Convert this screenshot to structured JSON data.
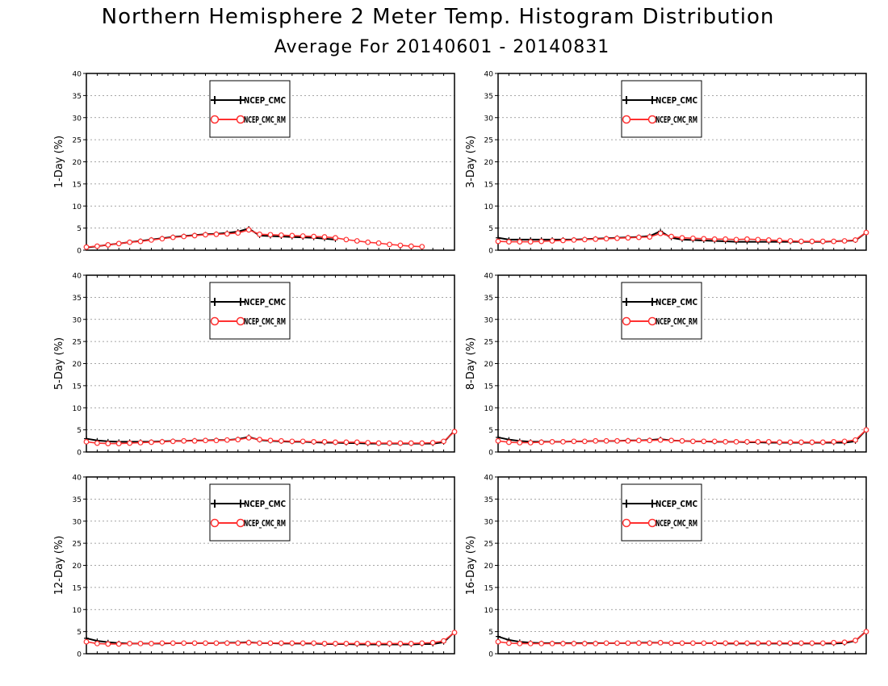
{
  "page": {
    "title": "Northern Hemisphere 2 Meter Temp. Histogram Distribution",
    "subtitle": "Average For 20140601 - 20140831"
  },
  "colors": {
    "ncep": "#000000",
    "ncep_rm": "#ff3030",
    "grid": "#888888"
  },
  "chart_data": [
    {
      "type": "line",
      "ylabel": "1-Day (%)",
      "ylim": [
        0,
        40
      ],
      "yticks": [
        0,
        5,
        10,
        15,
        20,
        25,
        30,
        35,
        40
      ],
      "grid": true,
      "legend": "upper-center",
      "x": [
        1,
        2,
        3,
        4,
        5,
        6,
        7,
        8,
        9,
        10,
        11,
        12,
        13,
        14,
        15,
        16,
        17,
        18,
        19,
        20,
        21,
        22,
        23,
        24,
        25,
        26,
        27,
        28,
        29,
        30,
        31,
        32,
        33,
        34,
        35
      ],
      "series": [
        {
          "name": "NCEP_CMC",
          "marker": "plus",
          "values": [
            0.6,
            0.9,
            1.2,
            1.5,
            1.8,
            2.1,
            2.4,
            2.7,
            3.0,
            3.2,
            3.4,
            3.6,
            3.7,
            3.9,
            4.2,
            4.9,
            3.3,
            3.2,
            3.1,
            3.0,
            2.9,
            2.8,
            2.6,
            2.4,
            null,
            null,
            null,
            null,
            null,
            null,
            null,
            null,
            null,
            null,
            null
          ]
        },
        {
          "name": "NCEP_CMC_RM",
          "marker": "circle",
          "values": [
            0.7,
            0.9,
            1.2,
            1.5,
            1.8,
            2.0,
            2.3,
            2.6,
            2.9,
            3.1,
            3.3,
            3.5,
            3.6,
            3.7,
            3.9,
            4.6,
            3.6,
            3.5,
            3.4,
            3.3,
            3.2,
            3.1,
            3.0,
            2.8,
            2.4,
            2.1,
            1.8,
            1.6,
            1.3,
            1.1,
            0.9,
            0.8,
            null,
            null,
            null
          ]
        }
      ]
    },
    {
      "type": "line",
      "ylabel": "3-Day (%)",
      "ylim": [
        0,
        40
      ],
      "yticks": [
        0,
        5,
        10,
        15,
        20,
        25,
        30,
        35,
        40
      ],
      "grid": true,
      "legend": "upper-center",
      "x": [
        1,
        2,
        3,
        4,
        5,
        6,
        7,
        8,
        9,
        10,
        11,
        12,
        13,
        14,
        15,
        16,
        17,
        18,
        19,
        20,
        21,
        22,
        23,
        24,
        25,
        26,
        27,
        28,
        29,
        30,
        31,
        32,
        33,
        34,
        35
      ],
      "series": [
        {
          "name": "NCEP_CMC",
          "marker": "plus",
          "values": [
            2.8,
            2.4,
            2.4,
            2.4,
            2.4,
            2.4,
            2.4,
            2.4,
            2.5,
            2.6,
            2.7,
            2.8,
            2.9,
            3.0,
            3.2,
            4.3,
            2.8,
            2.4,
            2.3,
            2.2,
            2.1,
            2.0,
            1.9,
            1.9,
            1.9,
            1.9,
            1.9,
            1.9,
            1.9,
            1.9,
            1.9,
            2.0,
            2.1,
            2.2,
            4.0
          ]
        },
        {
          "name": "NCEP_CMC_RM",
          "marker": "circle",
          "values": [
            2.0,
            1.9,
            1.9,
            1.9,
            2.0,
            2.1,
            2.2,
            2.3,
            2.4,
            2.5,
            2.6,
            2.7,
            2.8,
            2.9,
            3.0,
            3.8,
            3.1,
            2.8,
            2.7,
            2.6,
            2.5,
            2.5,
            2.4,
            2.5,
            2.4,
            2.3,
            2.2,
            2.1,
            2.0,
            2.0,
            2.0,
            2.0,
            2.1,
            2.3,
            4.0
          ]
        }
      ]
    },
    {
      "type": "line",
      "ylabel": "5-Day (%)",
      "ylim": [
        0,
        40
      ],
      "yticks": [
        0,
        5,
        10,
        15,
        20,
        25,
        30,
        35,
        40
      ],
      "grid": true,
      "legend": "upper-center",
      "x": [
        1,
        2,
        3,
        4,
        5,
        6,
        7,
        8,
        9,
        10,
        11,
        12,
        13,
        14,
        15,
        16,
        17,
        18,
        19,
        20,
        21,
        22,
        23,
        24,
        25,
        26,
        27,
        28,
        29,
        30,
        31,
        32,
        33,
        34,
        35
      ],
      "series": [
        {
          "name": "NCEP_CMC",
          "marker": "plus",
          "values": [
            3.0,
            2.6,
            2.4,
            2.3,
            2.3,
            2.3,
            2.3,
            2.4,
            2.5,
            2.5,
            2.6,
            2.6,
            2.7,
            2.7,
            2.9,
            3.4,
            2.7,
            2.5,
            2.4,
            2.3,
            2.3,
            2.2,
            2.1,
            2.1,
            2.0,
            2.0,
            1.9,
            1.9,
            1.9,
            1.9,
            1.9,
            1.9,
            1.9,
            2.2,
            4.8
          ]
        },
        {
          "name": "NCEP_CMC_RM",
          "marker": "circle",
          "values": [
            2.3,
            2.0,
            1.9,
            1.9,
            2.0,
            2.1,
            2.2,
            2.3,
            2.4,
            2.5,
            2.5,
            2.6,
            2.6,
            2.7,
            2.8,
            3.2,
            2.8,
            2.6,
            2.5,
            2.4,
            2.4,
            2.3,
            2.3,
            2.2,
            2.2,
            2.2,
            2.1,
            2.0,
            2.0,
            2.0,
            2.0,
            2.0,
            2.1,
            2.4,
            4.6
          ]
        }
      ]
    },
    {
      "type": "line",
      "ylabel": "8-Day (%)",
      "ylim": [
        0,
        40
      ],
      "yticks": [
        0,
        5,
        10,
        15,
        20,
        25,
        30,
        35,
        40
      ],
      "grid": true,
      "legend": "upper-center",
      "x": [
        1,
        2,
        3,
        4,
        5,
        6,
        7,
        8,
        9,
        10,
        11,
        12,
        13,
        14,
        15,
        16,
        17,
        18,
        19,
        20,
        21,
        22,
        23,
        24,
        25,
        26,
        27,
        28,
        29,
        30,
        31,
        32,
        33,
        34,
        35
      ],
      "series": [
        {
          "name": "NCEP_CMC",
          "marker": "plus",
          "values": [
            3.3,
            2.8,
            2.5,
            2.3,
            2.3,
            2.3,
            2.3,
            2.4,
            2.4,
            2.5,
            2.5,
            2.5,
            2.6,
            2.6,
            2.7,
            2.9,
            2.6,
            2.5,
            2.4,
            2.4,
            2.3,
            2.3,
            2.3,
            2.2,
            2.2,
            2.1,
            2.1,
            2.1,
            2.1,
            2.1,
            2.1,
            2.1,
            2.1,
            2.4,
            5.0
          ]
        },
        {
          "name": "NCEP_CMC_RM",
          "marker": "circle",
          "values": [
            2.5,
            2.2,
            2.1,
            2.1,
            2.2,
            2.3,
            2.3,
            2.4,
            2.4,
            2.5,
            2.5,
            2.5,
            2.5,
            2.6,
            2.6,
            2.7,
            2.6,
            2.5,
            2.4,
            2.4,
            2.4,
            2.3,
            2.3,
            2.3,
            2.3,
            2.3,
            2.2,
            2.2,
            2.2,
            2.2,
            2.2,
            2.3,
            2.4,
            2.7,
            5.0
          ]
        }
      ]
    },
    {
      "type": "line",
      "ylabel": "12-Day (%)",
      "ylim": [
        0,
        40
      ],
      "yticks": [
        0,
        5,
        10,
        15,
        20,
        25,
        30,
        35,
        40
      ],
      "grid": true,
      "legend": "upper-center",
      "x": [
        1,
        2,
        3,
        4,
        5,
        6,
        7,
        8,
        9,
        10,
        11,
        12,
        13,
        14,
        15,
        16,
        17,
        18,
        19,
        20,
        21,
        22,
        23,
        24,
        25,
        26,
        27,
        28,
        29,
        30,
        31,
        32,
        33,
        34,
        35
      ],
      "series": [
        {
          "name": "NCEP_CMC",
          "marker": "plus",
          "values": [
            3.5,
            2.9,
            2.6,
            2.4,
            2.3,
            2.3,
            2.3,
            2.3,
            2.4,
            2.4,
            2.4,
            2.4,
            2.4,
            2.5,
            2.5,
            2.6,
            2.4,
            2.4,
            2.3,
            2.3,
            2.3,
            2.3,
            2.2,
            2.2,
            2.2,
            2.1,
            2.1,
            2.1,
            2.1,
            2.1,
            2.1,
            2.2,
            2.2,
            2.6,
            4.9
          ]
        },
        {
          "name": "NCEP_CMC_RM",
          "marker": "circle",
          "values": [
            2.7,
            2.3,
            2.2,
            2.2,
            2.3,
            2.3,
            2.3,
            2.4,
            2.4,
            2.4,
            2.4,
            2.4,
            2.4,
            2.4,
            2.4,
            2.5,
            2.4,
            2.4,
            2.4,
            2.4,
            2.4,
            2.4,
            2.3,
            2.3,
            2.3,
            2.3,
            2.3,
            2.3,
            2.3,
            2.3,
            2.3,
            2.4,
            2.5,
            2.9,
            4.8
          ]
        }
      ]
    },
    {
      "type": "line",
      "ylabel": "16-Day (%)",
      "ylim": [
        0,
        40
      ],
      "yticks": [
        0,
        5,
        10,
        15,
        20,
        25,
        30,
        35,
        40
      ],
      "grid": true,
      "legend": "upper-center",
      "x": [
        1,
        2,
        3,
        4,
        5,
        6,
        7,
        8,
        9,
        10,
        11,
        12,
        13,
        14,
        15,
        16,
        17,
        18,
        19,
        20,
        21,
        22,
        23,
        24,
        25,
        26,
        27,
        28,
        29,
        30,
        31,
        32,
        33,
        34,
        35
      ],
      "series": [
        {
          "name": "NCEP_CMC",
          "marker": "plus",
          "values": [
            3.9,
            3.1,
            2.7,
            2.5,
            2.4,
            2.4,
            2.4,
            2.4,
            2.4,
            2.4,
            2.4,
            2.4,
            2.4,
            2.5,
            2.5,
            2.5,
            2.4,
            2.4,
            2.4,
            2.4,
            2.4,
            2.3,
            2.3,
            2.3,
            2.3,
            2.3,
            2.3,
            2.3,
            2.3,
            2.3,
            2.3,
            2.3,
            2.4,
            2.9,
            5.1
          ]
        },
        {
          "name": "NCEP_CMC_RM",
          "marker": "circle",
          "values": [
            2.7,
            2.4,
            2.3,
            2.3,
            2.3,
            2.3,
            2.3,
            2.3,
            2.3,
            2.3,
            2.4,
            2.4,
            2.4,
            2.4,
            2.4,
            2.5,
            2.4,
            2.4,
            2.4,
            2.4,
            2.4,
            2.4,
            2.4,
            2.4,
            2.4,
            2.4,
            2.4,
            2.4,
            2.4,
            2.4,
            2.4,
            2.5,
            2.6,
            3.0,
            5.0
          ]
        }
      ]
    }
  ]
}
